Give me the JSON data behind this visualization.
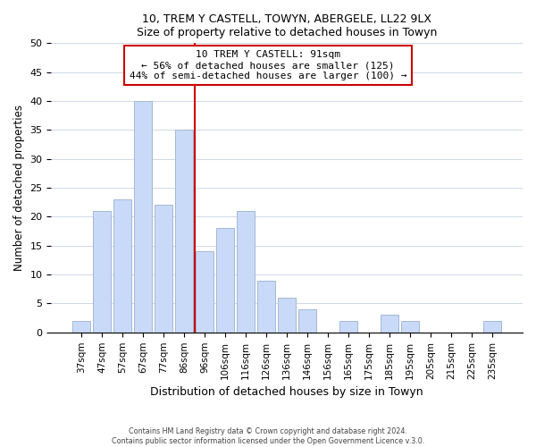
{
  "title1": "10, TREM Y CASTELL, TOWYN, ABERGELE, LL22 9LX",
  "title2": "Size of property relative to detached houses in Towyn",
  "xlabel": "Distribution of detached houses by size in Towyn",
  "ylabel": "Number of detached properties",
  "bar_labels": [
    "37sqm",
    "47sqm",
    "57sqm",
    "67sqm",
    "77sqm",
    "86sqm",
    "96sqm",
    "106sqm",
    "116sqm",
    "126sqm",
    "136sqm",
    "146sqm",
    "156sqm",
    "165sqm",
    "175sqm",
    "185sqm",
    "195sqm",
    "205sqm",
    "215sqm",
    "225sqm",
    "235sqm"
  ],
  "bar_values": [
    2,
    21,
    23,
    40,
    22,
    35,
    14,
    18,
    21,
    9,
    6,
    4,
    0,
    2,
    0,
    3,
    2,
    0,
    0,
    0,
    2
  ],
  "bar_color": "#c9daf8",
  "bar_edge_color": "#a4b8d4",
  "marker_line_color": "#cc0000",
  "annotation_line1": "10 TREM Y CASTELL: 91sqm",
  "annotation_line2": "← 56% of detached houses are smaller (125)",
  "annotation_line3": "44% of semi-detached houses are larger (100) →",
  "annotation_box_edge": "#cc0000",
  "ylim": [
    0,
    50
  ],
  "yticks": [
    0,
    5,
    10,
    15,
    20,
    25,
    30,
    35,
    40,
    45,
    50
  ],
  "grid_color": "#d0d8e8",
  "footnote1": "Contains HM Land Registry data © Crown copyright and database right 2024.",
  "footnote2": "Contains public sector information licensed under the Open Government Licence v.3.0."
}
